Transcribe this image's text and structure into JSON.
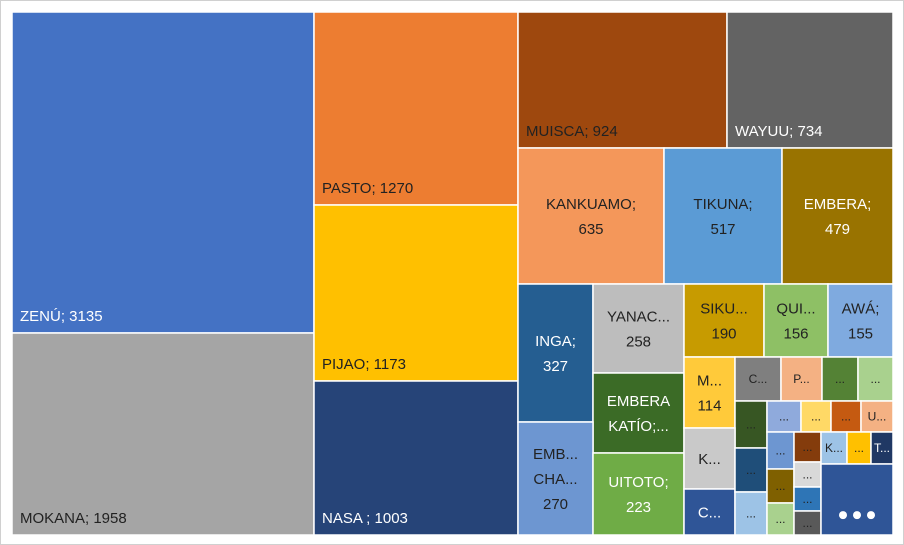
{
  "chart_data": {
    "type": "treemap",
    "items": [
      {
        "lines": [
          "ZENÚ; 3135"
        ],
        "value": 3135,
        "color": "#4472C4",
        "text_color": "#FFFFFF"
      },
      {
        "lines": [
          "MOKANA; 1958"
        ],
        "value": 1958,
        "color": "#A5A5A5",
        "text_color": "#222222"
      },
      {
        "lines": [
          "PASTO; 1270"
        ],
        "value": 1270,
        "color": "#ED7D31",
        "text_color": "#222222"
      },
      {
        "lines": [
          "PIJAO; 1173"
        ],
        "value": 1173,
        "color": "#FFC000",
        "text_color": "#222222"
      },
      {
        "lines": [
          "NASA ; 1003"
        ],
        "value": 1003,
        "color": "#264478",
        "text_color": "#FFFFFF"
      },
      {
        "lines": [
          "MUISCA; 924"
        ],
        "value": 924,
        "color": "#9E480E",
        "text_color": "#222222"
      },
      {
        "lines": [
          "WAYUU; 734"
        ],
        "value": 734,
        "color": "#636363",
        "text_color": "#FFFFFF"
      },
      {
        "lines": [
          "KANKUAMO;",
          "635"
        ],
        "value": 635,
        "color": "#F4975A",
        "text_color": "#222222"
      },
      {
        "lines": [
          "TIKUNA;",
          "517"
        ],
        "value": 517,
        "color": "#5B9BD5",
        "text_color": "#222222"
      },
      {
        "lines": [
          "EMBERA;",
          "479"
        ],
        "value": 479,
        "color": "#997300",
        "text_color": "#FFFFFF"
      },
      {
        "lines": [
          "INGA;",
          "327"
        ],
        "value": 327,
        "color": "#255E91",
        "text_color": "#FFFFFF"
      },
      {
        "lines": [
          "YANAC...",
          "258"
        ],
        "value": 258,
        "color": "#BDBDBD",
        "text_color": "#222222"
      },
      {
        "lines": [
          "SIKU...",
          "190"
        ],
        "value": 190,
        "color": "#C79B00",
        "text_color": "#222222"
      },
      {
        "lines": [
          "QUI...",
          "156"
        ],
        "value": 156,
        "color": "#8EC065",
        "text_color": "#222222"
      },
      {
        "lines": [
          "AWÁ;",
          "155"
        ],
        "value": 155,
        "color": "#7FAADF",
        "text_color": "#222222"
      },
      {
        "lines": [
          "EMBERA",
          "KATÍO;..."
        ],
        "value": null,
        "color": "#3B6B26",
        "text_color": "#FFFFFF"
      },
      {
        "lines": [
          "M...",
          "114"
        ],
        "value": 114,
        "color": "#FFCA3A",
        "text_color": "#222222"
      },
      {
        "lines": [
          "EMB...",
          "CHA...",
          "270"
        ],
        "value": 270,
        "color": "#6D96D1",
        "text_color": "#222222"
      },
      {
        "lines": [
          "UITOTO;",
          "223"
        ],
        "value": 223,
        "color": "#6FAC46",
        "text_color": "#FFFFFF"
      },
      {
        "lines": [
          "C..."
        ],
        "value": null,
        "color": "#7F7F7F",
        "text_color": "#222222"
      },
      {
        "lines": [
          "P..."
        ],
        "value": null,
        "color": "#F4B183",
        "text_color": "#222222"
      },
      {
        "lines": [
          "..."
        ],
        "value": null,
        "color": "#548235",
        "text_color": "#222222"
      },
      {
        "lines": [
          "..."
        ],
        "value": null,
        "color": "#A9D18E",
        "text_color": "#222222"
      },
      {
        "lines": [
          "..."
        ],
        "value": null,
        "color": "#375623",
        "text_color": "#222222"
      },
      {
        "lines": [
          "..."
        ],
        "value": null,
        "color": "#8FAADC",
        "text_color": "#222222"
      },
      {
        "lines": [
          "..."
        ],
        "value": null,
        "color": "#FFD966",
        "text_color": "#222222"
      },
      {
        "lines": [
          "..."
        ],
        "value": null,
        "color": "#C55A11",
        "text_color": "#222222"
      },
      {
        "lines": [
          "U..."
        ],
        "value": null,
        "color": "#F4B183",
        "text_color": "#222222"
      },
      {
        "lines": [
          "K..."
        ],
        "value": null,
        "color": "#C9C9C9",
        "text_color": "#222222"
      },
      {
        "lines": [
          "C..."
        ],
        "value": null,
        "color": "#2F5597",
        "text_color": "#FFFFFF"
      },
      {
        "lines": [
          "..."
        ],
        "value": null,
        "color": "#1F4E79",
        "text_color": "#222222"
      },
      {
        "lines": [
          "..."
        ],
        "value": null,
        "color": "#9DC3E6",
        "text_color": "#222222"
      },
      {
        "lines": [
          "..."
        ],
        "value": null,
        "color": "#6D96D1",
        "text_color": "#222222"
      },
      {
        "lines": [
          "..."
        ],
        "value": null,
        "color": "#7F6000",
        "text_color": "#222222"
      },
      {
        "lines": [
          "..."
        ],
        "value": null,
        "color": "#A9D18E",
        "text_color": "#222222"
      },
      {
        "lines": [
          "..."
        ],
        "value": null,
        "color": "#843C0C",
        "text_color": "#222222"
      },
      {
        "lines": [
          "..."
        ],
        "value": null,
        "color": "#D9D9D9",
        "text_color": "#222222"
      },
      {
        "lines": [
          "..."
        ],
        "value": null,
        "color": "#2E75B6",
        "text_color": "#222222"
      },
      {
        "lines": [
          "..."
        ],
        "value": null,
        "color": "#595959",
        "text_color": "#222222"
      },
      {
        "lines": [
          "K..."
        ],
        "value": null,
        "color": "#9DC3E6",
        "text_color": "#222222"
      },
      {
        "lines": [
          "..."
        ],
        "value": null,
        "color": "#FFC000",
        "text_color": "#222222"
      },
      {
        "lines": [
          "T..."
        ],
        "value": null,
        "color": "#203864",
        "text_color": "#FFFFFF"
      },
      {
        "lines": [
          "..."
        ],
        "value": null,
        "color": "#2F5597",
        "text_color": "#FFFFFF"
      }
    ]
  }
}
